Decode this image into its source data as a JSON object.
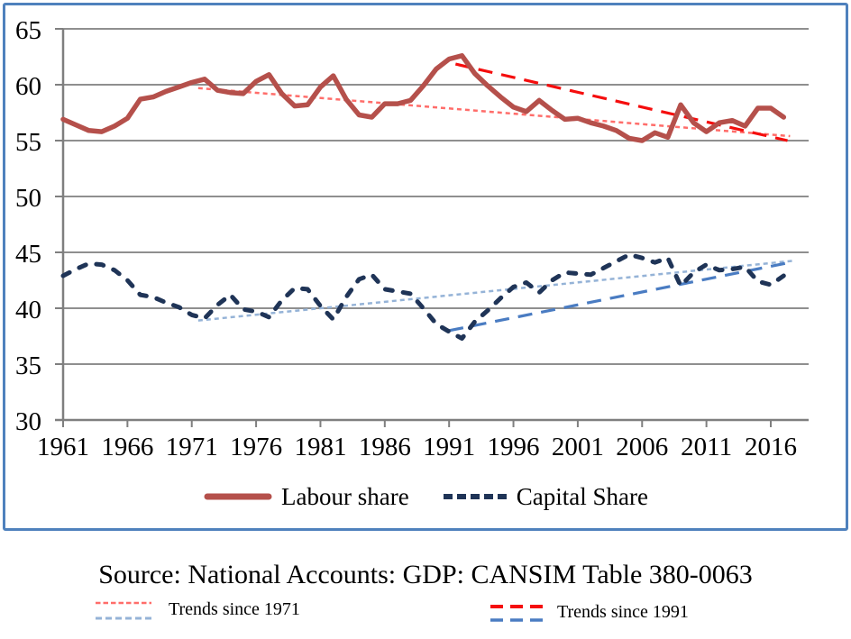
{
  "chart_data": {
    "type": "line",
    "title": "",
    "xlabel": "",
    "ylabel": "",
    "ylim": [
      30,
      65
    ],
    "xlim": [
      1961,
      2019
    ],
    "yticks": [
      30,
      35,
      40,
      45,
      50,
      55,
      60,
      65
    ],
    "xticks": [
      1961,
      1966,
      1971,
      1976,
      1981,
      1986,
      1991,
      1996,
      2001,
      2006,
      2011,
      2016
    ],
    "grid": true,
    "legend_position": "bottom-inside",
    "x": [
      1961,
      1962,
      1963,
      1964,
      1965,
      1966,
      1967,
      1968,
      1969,
      1970,
      1971,
      1972,
      1973,
      1974,
      1975,
      1976,
      1977,
      1978,
      1979,
      1980,
      1981,
      1982,
      1983,
      1984,
      1985,
      1986,
      1987,
      1988,
      1989,
      1990,
      1991,
      1992,
      1993,
      1994,
      1995,
      1996,
      1997,
      1998,
      1999,
      2000,
      2001,
      2002,
      2003,
      2004,
      2005,
      2006,
      2007,
      2008,
      2009,
      2010,
      2011,
      2012,
      2013,
      2014,
      2015,
      2016,
      2017
    ],
    "series": [
      {
        "name": "Labour share",
        "style": "solid",
        "color": "#b5504b",
        "values": [
          56.9,
          56.4,
          55.9,
          55.8,
          56.3,
          57.0,
          58.7,
          58.9,
          59.4,
          59.8,
          60.2,
          60.5,
          59.5,
          59.3,
          59.2,
          60.3,
          60.9,
          59.2,
          58.1,
          58.2,
          59.8,
          60.8,
          58.7,
          57.3,
          57.1,
          58.3,
          58.3,
          58.6,
          59.9,
          61.4,
          62.3,
          62.6,
          61.0,
          59.9,
          58.9,
          58.0,
          57.6,
          58.6,
          57.7,
          56.9,
          57.0,
          56.6,
          56.3,
          55.9,
          55.2,
          55.0,
          55.7,
          55.3,
          58.2,
          56.6,
          55.8,
          56.6,
          56.8,
          56.3,
          57.9,
          57.9,
          57.1
        ]
      },
      {
        "name": "Capital Share",
        "style": "dashed",
        "color": "#1f3457",
        "values": [
          42.9,
          43.5,
          44.0,
          43.9,
          43.4,
          42.5,
          41.2,
          41.0,
          40.5,
          40.1,
          39.4,
          39.1,
          40.3,
          41.2,
          39.9,
          39.7,
          39.2,
          40.7,
          41.8,
          41.7,
          40.2,
          39.0,
          41.0,
          42.6,
          43.0,
          41.7,
          41.5,
          41.3,
          40.0,
          38.6,
          37.9,
          37.3,
          38.8,
          39.8,
          40.9,
          41.9,
          42.3,
          41.4,
          42.5,
          43.2,
          43.1,
          43.0,
          43.6,
          44.2,
          44.8,
          44.5,
          44.1,
          44.5,
          42.0,
          43.2,
          43.9,
          43.4,
          43.5,
          43.7,
          42.4,
          42.1,
          42.9
        ]
      }
    ],
    "trendlines": [
      {
        "name": "labour-trend-since-1971",
        "color": "#ff6d6a",
        "style": "dotted",
        "x1": 1971.5,
        "y1": 59.7,
        "x2": 2017.5,
        "y2": 55.4
      },
      {
        "name": "labour-trend-since-1991",
        "color": "#f50d0d",
        "style": "long-dash",
        "x1": 1991.5,
        "y1": 61.85,
        "x2": 2017.3,
        "y2": 55.0
      },
      {
        "name": "capital-trend-since-1971",
        "color": "#95b3d7",
        "style": "dotted",
        "x1": 1971.5,
        "y1": 38.9,
        "x2": 2017.8,
        "y2": 44.25
      },
      {
        "name": "capital-trend-since-1991",
        "color": "#4a7cc2",
        "style": "long-dash",
        "x1": 1991.0,
        "y1": 38.0,
        "x2": 2017.5,
        "y2": 44.1
      }
    ]
  },
  "legend": {
    "labour_label": "Labour share",
    "capital_label": "Capital Share"
  },
  "source": {
    "text": "Source: National Accounts: GDP: CANSIM Table 380-0063"
  },
  "trend_legend": {
    "since_1971": {
      "label": "Trends since 1971"
    },
    "since_1991": {
      "label": "Trends since 1991"
    }
  },
  "colors": {
    "frame_border": "#4f81bd",
    "gridline": "#8f8f8f",
    "axis": "#7f7f7f",
    "labour_line": "#b5504b",
    "capital_line": "#1f3457",
    "trend_red_dotted": "#ff6d6a",
    "trend_red_dashed": "#f50d0d",
    "trend_blue_dotted": "#95b3d7",
    "trend_blue_dashed": "#4a7cc2"
  }
}
